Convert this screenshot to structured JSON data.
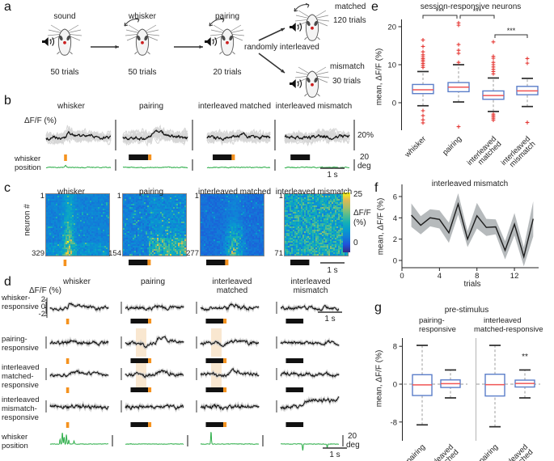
{
  "colors": {
    "stim_orange": "#f5921e",
    "shade_orange": "#f7dfc0",
    "whisker_green": "#2eae4a",
    "gray_trace": "#d6d6d6",
    "mean_black": "#161616",
    "box_blue": "#5b7ec9",
    "median_red": "#f05454",
    "outlier_red": "#e53935",
    "band_gray": "#b6babc"
  },
  "panels": {
    "a": {
      "label": "a",
      "steps": [
        {
          "title": "sound",
          "trials": "50 trials",
          "speaker": true,
          "arrow": false
        },
        {
          "title": "whisker",
          "trials": "50 trials",
          "speaker": false,
          "arrow": true
        },
        {
          "title": "pairing",
          "trials": "20 trials",
          "speaker": true,
          "arrow": true
        }
      ],
      "interleave_label": "randomly interleaved",
      "branches": [
        {
          "title": "matched",
          "trials": "120 trials",
          "speaker": true,
          "arrow": true
        },
        {
          "title": "mismatch",
          "trials": "30 trials",
          "speaker": true,
          "arrow": false
        }
      ]
    },
    "b": {
      "label": "b",
      "ylabel": "ΔF/F (%)",
      "position_label_1": "whisker",
      "position_label_2": "position",
      "columns": [
        "whisker",
        "pairing",
        "interleaved matched",
        "interleaved mismatch"
      ],
      "stim": [
        "tick",
        "bar_tick",
        "bar_tick",
        "bar"
      ],
      "scale_pct": "20%",
      "scale_deg_val": "20",
      "scale_deg_unit": "deg",
      "scale_time": "1 s"
    },
    "c": {
      "label": "c",
      "ylabel": "neuron #",
      "columns": [
        "whisker",
        "pairing",
        "interleaved matched",
        "interleaved mismatch"
      ],
      "stim": [
        "tick",
        "bar_tick",
        "bar_tick",
        "bar"
      ],
      "first_row": "1",
      "counts": [
        "329",
        "154",
        "277",
        "71"
      ],
      "colorbar": {
        "max": "25",
        "min": "0",
        "label_line1": "ΔF/F",
        "label_line2": "(%)"
      },
      "scale_time": "1 s"
    },
    "d": {
      "label": "d",
      "ylabel": "ΔF/F (%)",
      "yticks": [
        "2",
        "0",
        "-2"
      ],
      "columns_line1": [
        "whisker",
        "pairing",
        "interleaved",
        "interleaved"
      ],
      "columns_line2": [
        "",
        "",
        "matched",
        "mismatch"
      ],
      "stim": [
        "tick",
        "bar_tick",
        "bar_tick",
        "bar"
      ],
      "rows": [
        [
          "whisker-",
          "responsive"
        ],
        [
          "pairing-",
          "responsive"
        ],
        [
          "interleaved",
          "matched-",
          "responsive"
        ],
        [
          "interleaved",
          "mismatch-",
          "responsive"
        ],
        [
          "whisker",
          "position"
        ]
      ],
      "scale_time": "1 s",
      "scale_deg_val": "20",
      "scale_deg_unit": "deg"
    }
  },
  "chart_data": [
    {
      "type": "box",
      "panel": "e",
      "title": "session-responsive neurons",
      "ylabel": "mean, ΔF/F (%)",
      "yticks": [
        0,
        10,
        20
      ],
      "ylim": [
        -7,
        22
      ],
      "categories": [
        "whisker",
        "pairing",
        [
          "interleaved",
          "matched"
        ],
        [
          "interleaved",
          "mismatch"
        ]
      ],
      "boxes": [
        {
          "q1": 2.4,
          "median": 3.4,
          "q3": 4.8,
          "whisker_low": -0.8,
          "whisker_high": 8.2,
          "outliers": [
            16.5,
            14.8,
            13.4,
            12.6,
            12.1,
            11.6,
            11.2,
            10.8,
            10.3,
            9.8,
            9.3,
            -2.1,
            -3.4,
            -4.5,
            -5.3
          ]
        },
        {
          "q1": 2.9,
          "median": 4.1,
          "q3": 5.3,
          "whisker_low": 0.2,
          "whisker_high": 10.0,
          "outliers": [
            21.0,
            20.4,
            15.3,
            13.8,
            13.0,
            10.6,
            -6.3
          ]
        },
        {
          "q1": 0.9,
          "median": 1.9,
          "q3": 3.1,
          "whisker_low": -2.3,
          "whisker_high": 6.5,
          "outliers": [
            16.0,
            12.2,
            11.7,
            10.6,
            10.0,
            9.4,
            8.8,
            8.2,
            7.6,
            -3.0,
            -3.4,
            -3.8,
            -4.2,
            -4.6
          ]
        },
        {
          "q1": 2.1,
          "median": 3.1,
          "q3": 4.3,
          "whisker_low": -1.0,
          "whisker_high": 6.4,
          "outliers": [
            11.6,
            10.4,
            -5.2
          ]
        }
      ],
      "significance": [
        {
          "a": 0,
          "b": 1,
          "label": "***"
        },
        {
          "a": 1,
          "b": 2,
          "label": "***"
        },
        {
          "a": 2,
          "b": 3,
          "label": "***"
        }
      ]
    },
    {
      "type": "line",
      "panel": "f",
      "title": "interleaved mismatch",
      "xlabel": "trials",
      "ylabel": "mean, ΔF/F (%)",
      "xticks": [
        0,
        4,
        8,
        12
      ],
      "yticks": [
        0,
        2,
        4,
        6
      ],
      "xlim": [
        0,
        14.5
      ],
      "ylim": [
        -0.8,
        6.8
      ],
      "x": [
        1,
        2,
        3,
        4,
        5,
        6,
        7,
        8,
        9,
        10,
        11,
        12,
        13,
        14
      ],
      "y": [
        4.25,
        3.3,
        4.0,
        3.85,
        2.6,
        5.3,
        2.0,
        4.2,
        3.1,
        3.15,
        0.95,
        3.4,
        0.35,
        3.9
      ],
      "band": [
        1.1,
        0.85,
        0.8,
        0.85,
        0.95,
        1.0,
        0.75,
        1.2,
        0.8,
        0.7,
        0.85,
        1.05,
        0.9,
        1.65
      ]
    },
    {
      "type": "box-group",
      "panel": "g",
      "title": "pre-stimulus",
      "ylabel": "mean, ΔF/F (%)",
      "yticks": [
        -8,
        0,
        8
      ],
      "groups": [
        {
          "subtitle": [
            "pairing-",
            "responsive"
          ],
          "categories": [
            "pairing",
            [
              "interleaved",
              "matched"
            ]
          ],
          "boxes": [
            {
              "q1": -2.4,
              "median": -0.15,
              "q3": 2.0,
              "whisker_low": -8.6,
              "whisker_high": 8.2,
              "sig": ""
            },
            {
              "q1": -0.7,
              "median": 0.1,
              "q3": 0.9,
              "whisker_low": -2.9,
              "whisker_high": 3.0,
              "sig": ""
            }
          ]
        },
        {
          "subtitle": [
            "interleaved",
            "matched-responsive"
          ],
          "categories": [
            "pairing",
            [
              "interleaved",
              "matched"
            ]
          ],
          "boxes": [
            {
              "q1": -2.5,
              "median": -0.1,
              "q3": 2.1,
              "whisker_low": -9.0,
              "whisker_high": 8.2,
              "sig": ""
            },
            {
              "q1": -0.6,
              "median": 0.15,
              "q3": 0.85,
              "whisker_low": -2.9,
              "whisker_high": 3.0,
              "sig": "**"
            }
          ]
        }
      ]
    }
  ]
}
